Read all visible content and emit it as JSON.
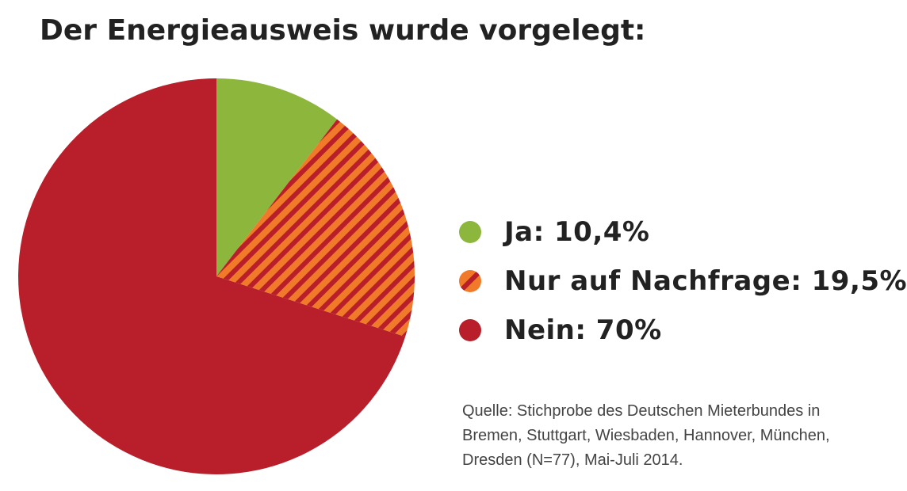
{
  "title": "Der Energieausweis wurde vorgelegt:",
  "chart_data": {
    "type": "pie",
    "title": "Der Energieausweis wurde vorgelegt:",
    "slices": [
      {
        "label": "Ja: 10,4%",
        "name": "Ja",
        "value": 10.4,
        "color": "#8cb63c",
        "pattern": "solid"
      },
      {
        "label": "Nur auf Nachfrage: 19,5%",
        "name": "Nur auf Nachfrage",
        "value": 19.5,
        "color": "#f07a2a",
        "stripe_color": "#b81f2a",
        "pattern": "striped"
      },
      {
        "label": "Nein: 70%",
        "name": "Nein",
        "value": 70,
        "color": "#b81f2a",
        "pattern": "solid"
      }
    ],
    "start_angle": "12 o'clock",
    "direction": "clockwise",
    "legend_position": "right"
  },
  "source": {
    "lines": [
      "Quelle: Stichprobe des Deutschen Mieterbundes in",
      "Bremen, Stuttgart, Wiesbaden, Hannover, München,",
      "Dresden  (N=77), Mai-Juli 2014."
    ]
  }
}
